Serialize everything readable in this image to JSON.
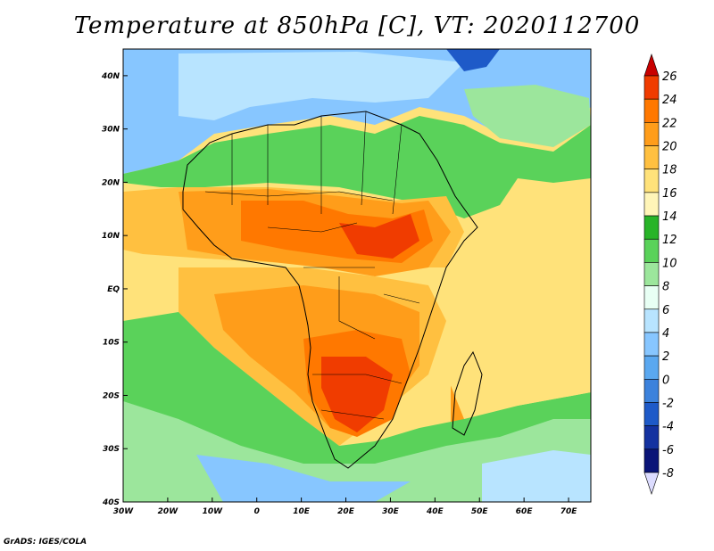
{
  "title": "Temperature at 850hPa [C], VT: 2020112700",
  "credit": "GrADS: IGES/COLA",
  "chart_data": {
    "type": "heatmap",
    "variable": "Temperature at 850hPa",
    "unit": "C",
    "valid_time": "2020112700",
    "x_ticks": [
      "30W",
      "20W",
      "10W",
      "0",
      "10E",
      "20E",
      "30E",
      "40E",
      "50E",
      "60E",
      "70E"
    ],
    "y_ticks": [
      "40N",
      "30N",
      "20N",
      "10N",
      "EQ",
      "10S",
      "20S",
      "30S",
      "40S"
    ],
    "lon_range": [
      -30,
      75
    ],
    "lat_range": [
      -40,
      45
    ],
    "colorbar": {
      "levels": [
        "26",
        "24",
        "22",
        "20",
        "18",
        "16",
        "14",
        "12",
        "10",
        "8",
        "6",
        "4",
        "2",
        "0",
        "-2",
        "-4",
        "-6",
        "-8"
      ],
      "colors": [
        "#c80000",
        "#f03c00",
        "#ff7800",
        "#ff9d1a",
        "#ffc040",
        "#ffe27a",
        "#fff5b8",
        "#28b428",
        "#5ad25a",
        "#9ce69c",
        "#e8fff4",
        "#b8e4ff",
        "#87c6ff",
        "#5aa8f0",
        "#3c82dc",
        "#1e5ac8",
        "#1432a0",
        "#0a1478",
        "#dcdcff"
      ]
    }
  }
}
